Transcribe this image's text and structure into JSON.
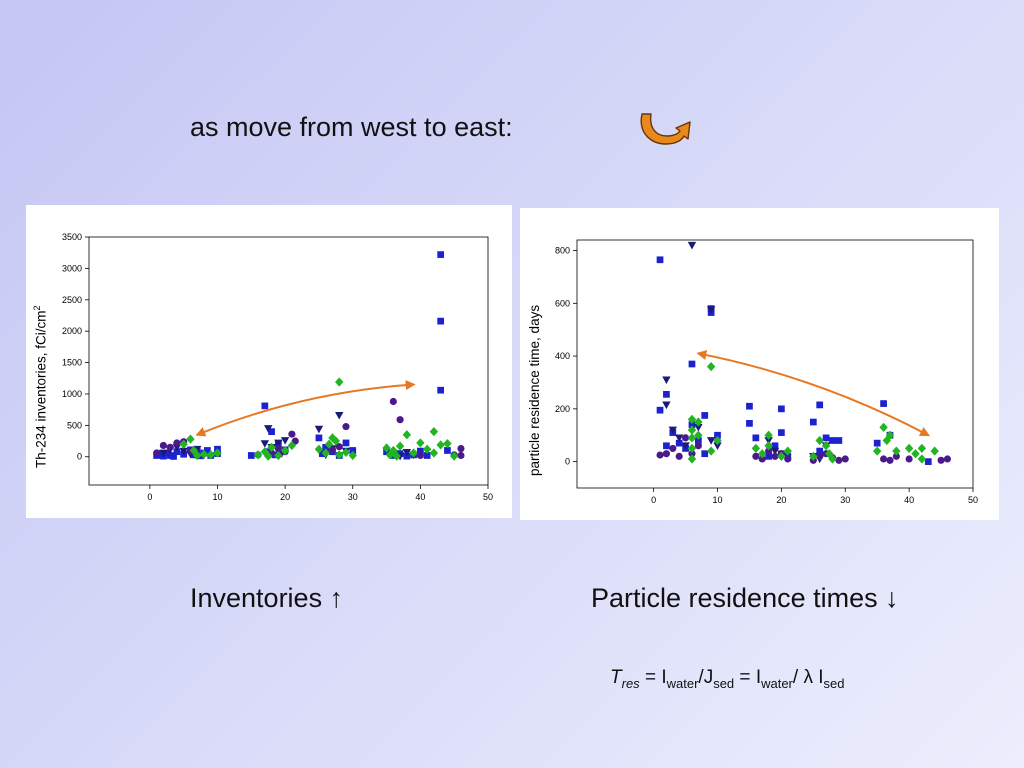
{
  "slide": {
    "headline": "as move from west to east:",
    "caption_left": "Inventories ↑",
    "caption_right": "Particle residence times ↓",
    "formula": {
      "t": "T",
      "t_sub": "res",
      "eq1": " = ",
      "i1": "I",
      "i1_sub": "water",
      "slash1": "/",
      "j": "J",
      "j_sub": "sed",
      "eq2": " = ",
      "i2": "I",
      "i2_sub": "water",
      "slash2": "/ ",
      "lambda": "λ",
      "i3": "  I",
      "i3_sub": "sed"
    },
    "colors": {
      "accent": "#e87722"
    }
  },
  "chart_data": [
    {
      "type": "scatter",
      "title": "",
      "xlabel": "",
      "ylabel": "Th-234 inventories, fCi/cm",
      "ylabel_superscript": "2",
      "xlim": [
        -9,
        50
      ],
      "ylim": [
        -450,
        3500
      ],
      "x_ticks": [
        0,
        10,
        20,
        30,
        40,
        50
      ],
      "y_ticks": [
        0,
        500,
        1000,
        1500,
        2000,
        2500,
        3000,
        3500
      ],
      "trend_arrow": {
        "from": [
          7,
          350
        ],
        "to": [
          39,
          1150
        ],
        "color": "#e87722"
      },
      "series": [
        {
          "marker": "square",
          "color": "#1c22d0",
          "points": [
            [
              1,
              20
            ],
            [
              1.5,
              50
            ],
            [
              2,
              10
            ],
            [
              2.5,
              60
            ],
            [
              3,
              20
            ],
            [
              3.5,
              5
            ],
            [
              4,
              80
            ],
            [
              5,
              40
            ],
            [
              6,
              110
            ],
            [
              6.5,
              30
            ],
            [
              7,
              90
            ],
            [
              7.5,
              15
            ],
            [
              8,
              60
            ],
            [
              8.5,
              100
            ],
            [
              9,
              20
            ],
            [
              10,
              50
            ],
            [
              10,
              120
            ],
            [
              15,
              20
            ],
            [
              17,
              810
            ],
            [
              17.5,
              80
            ],
            [
              18,
              400
            ],
            [
              18.5,
              30
            ],
            [
              19,
              200
            ],
            [
              20,
              110
            ],
            [
              25,
              300
            ],
            [
              25.5,
              50
            ],
            [
              26,
              150
            ],
            [
              27,
              80
            ],
            [
              28,
              20
            ],
            [
              29,
              220
            ],
            [
              30,
              100
            ],
            [
              35,
              80
            ],
            [
              36,
              20
            ],
            [
              37,
              50
            ],
            [
              38,
              10
            ],
            [
              39,
              30
            ],
            [
              40,
              90
            ],
            [
              41,
              20
            ],
            [
              43,
              3220
            ],
            [
              43,
              2160
            ],
            [
              43,
              1060
            ],
            [
              44,
              100
            ]
          ]
        },
        {
          "marker": "triangle-down",
          "color": "#1a1a7a",
          "points": [
            [
              2,
              60
            ],
            [
              3,
              110
            ],
            [
              4,
              150
            ],
            [
              5,
              90
            ],
            [
              6,
              40
            ],
            [
              7,
              120
            ],
            [
              17,
              210
            ],
            [
              17.5,
              450
            ],
            [
              18,
              150
            ],
            [
              19,
              220
            ],
            [
              19.5,
              50
            ],
            [
              20,
              260
            ],
            [
              25,
              440
            ],
            [
              26,
              30
            ],
            [
              27,
              130
            ],
            [
              28,
              660
            ],
            [
              29,
              90
            ],
            [
              36,
              60
            ],
            [
              37,
              10
            ],
            [
              38,
              70
            ],
            [
              39,
              30
            ]
          ]
        },
        {
          "marker": "circle",
          "color": "#4a1a8a",
          "points": [
            [
              1,
              60
            ],
            [
              2,
              180
            ],
            [
              3,
              150
            ],
            [
              4,
              220
            ],
            [
              5,
              240
            ],
            [
              6,
              80
            ],
            [
              7,
              20
            ],
            [
              16,
              30
            ],
            [
              18,
              60
            ],
            [
              19,
              130
            ],
            [
              20,
              80
            ],
            [
              21,
              360
            ],
            [
              21.5,
              250
            ],
            [
              26,
              70
            ],
            [
              27,
              110
            ],
            [
              28,
              160
            ],
            [
              29,
              480
            ],
            [
              36,
              880
            ],
            [
              37,
              590
            ],
            [
              40,
              20
            ],
            [
              45,
              30
            ],
            [
              46,
              130
            ],
            [
              46,
              20
            ]
          ]
        },
        {
          "marker": "diamond",
          "color": "#22b422",
          "points": [
            [
              5,
              200
            ],
            [
              6,
              280
            ],
            [
              6.5,
              100
            ],
            [
              7,
              20
            ],
            [
              8,
              40
            ],
            [
              9,
              30
            ],
            [
              10,
              60
            ],
            [
              16,
              30
            ],
            [
              17,
              80
            ],
            [
              17.5,
              10
            ],
            [
              18,
              150
            ],
            [
              19,
              20
            ],
            [
              20,
              100
            ],
            [
              21,
              180
            ],
            [
              25,
              120
            ],
            [
              26,
              60
            ],
            [
              26.5,
              200
            ],
            [
              27,
              300
            ],
            [
              27.5,
              250
            ],
            [
              28,
              1190
            ],
            [
              28,
              30
            ],
            [
              29,
              70
            ],
            [
              30,
              20
            ],
            [
              35,
              140
            ],
            [
              35.5,
              30
            ],
            [
              36,
              100
            ],
            [
              36.5,
              10
            ],
            [
              37,
              170
            ],
            [
              38,
              350
            ],
            [
              39,
              60
            ],
            [
              40,
              220
            ],
            [
              41,
              120
            ],
            [
              42,
              400
            ],
            [
              42,
              60
            ],
            [
              43,
              190
            ],
            [
              44,
              210
            ],
            [
              45,
              10
            ]
          ]
        }
      ]
    },
    {
      "type": "scatter",
      "title": "",
      "xlabel": "",
      "ylabel": "particle residence time, days",
      "xlim": [
        -12,
        50
      ],
      "ylim": [
        -100,
        840
      ],
      "x_ticks": [
        0,
        10,
        20,
        30,
        40,
        50
      ],
      "y_ticks": [
        0,
        200,
        400,
        600,
        800
      ],
      "trend_arrow": {
        "from": [
          43,
          100
        ],
        "to": [
          7,
          410
        ],
        "color": "#e87722"
      },
      "series": [
        {
          "marker": "square",
          "color": "#1c22d0",
          "points": [
            [
              1,
              765
            ],
            [
              1,
              195
            ],
            [
              2,
              255
            ],
            [
              2,
              60
            ],
            [
              3,
              110
            ],
            [
              4,
              70
            ],
            [
              5,
              50
            ],
            [
              6,
              370
            ],
            [
              6,
              140
            ],
            [
              7,
              80
            ],
            [
              8,
              175
            ],
            [
              8,
              30
            ],
            [
              9,
              565
            ],
            [
              9,
              580
            ],
            [
              10,
              100
            ],
            [
              15,
              210
            ],
            [
              15,
              145
            ],
            [
              16,
              90
            ],
            [
              18,
              20
            ],
            [
              19,
              60
            ],
            [
              20,
              200
            ],
            [
              20,
              110
            ],
            [
              21,
              20
            ],
            [
              25,
              150
            ],
            [
              26,
              215
            ],
            [
              26,
              40
            ],
            [
              27,
              90
            ],
            [
              28,
              80
            ],
            [
              29,
              80
            ],
            [
              35,
              70
            ],
            [
              36,
              220
            ],
            [
              37,
              100
            ],
            [
              43,
              0
            ]
          ]
        },
        {
          "marker": "triangle-down",
          "color": "#1a1a7a",
          "points": [
            [
              2,
              310
            ],
            [
              2,
              215
            ],
            [
              3,
              120
            ],
            [
              4,
              90
            ],
            [
              5,
              60
            ],
            [
              6,
              820
            ],
            [
              7,
              130
            ],
            [
              9,
              575
            ],
            [
              9,
              80
            ],
            [
              10,
              60
            ],
            [
              18,
              80
            ],
            [
              19,
              40
            ],
            [
              20,
              30
            ],
            [
              25,
              20
            ],
            [
              26,
              10
            ],
            [
              27,
              60
            ]
          ]
        },
        {
          "marker": "circle",
          "color": "#4a1a8a",
          "points": [
            [
              1,
              25
            ],
            [
              2,
              30
            ],
            [
              3,
              50
            ],
            [
              4,
              20
            ],
            [
              5,
              90
            ],
            [
              6,
              30
            ],
            [
              7,
              60
            ],
            [
              16,
              20
            ],
            [
              17,
              10
            ],
            [
              18,
              40
            ],
            [
              19,
              20
            ],
            [
              20,
              30
            ],
            [
              21,
              10
            ],
            [
              25,
              5
            ],
            [
              26,
              20
            ],
            [
              27,
              30
            ],
            [
              28,
              15
            ],
            [
              29,
              5
            ],
            [
              30,
              10
            ],
            [
              36,
              10
            ],
            [
              37,
              5
            ],
            [
              38,
              20
            ],
            [
              40,
              10
            ],
            [
              45,
              5
            ],
            [
              46,
              10
            ]
          ]
        },
        {
          "marker": "diamond",
          "color": "#22b422",
          "points": [
            [
              6,
              160
            ],
            [
              6,
              120
            ],
            [
              6,
              90
            ],
            [
              6,
              50
            ],
            [
              6,
              10
            ],
            [
              7,
              150
            ],
            [
              7,
              100
            ],
            [
              9,
              360
            ],
            [
              9,
              40
            ],
            [
              10,
              80
            ],
            [
              16,
              50
            ],
            [
              17,
              30
            ],
            [
              18,
              100
            ],
            [
              18,
              60
            ],
            [
              20,
              20
            ],
            [
              21,
              40
            ],
            [
              25,
              20
            ],
            [
              26,
              80
            ],
            [
              27,
              60
            ],
            [
              27.5,
              30
            ],
            [
              28,
              10
            ],
            [
              35,
              40
            ],
            [
              36,
              130
            ],
            [
              36.5,
              80
            ],
            [
              37,
              100
            ],
            [
              38,
              40
            ],
            [
              40,
              50
            ],
            [
              41,
              30
            ],
            [
              42,
              50
            ],
            [
              42,
              10
            ],
            [
              44,
              40
            ]
          ]
        }
      ]
    }
  ]
}
